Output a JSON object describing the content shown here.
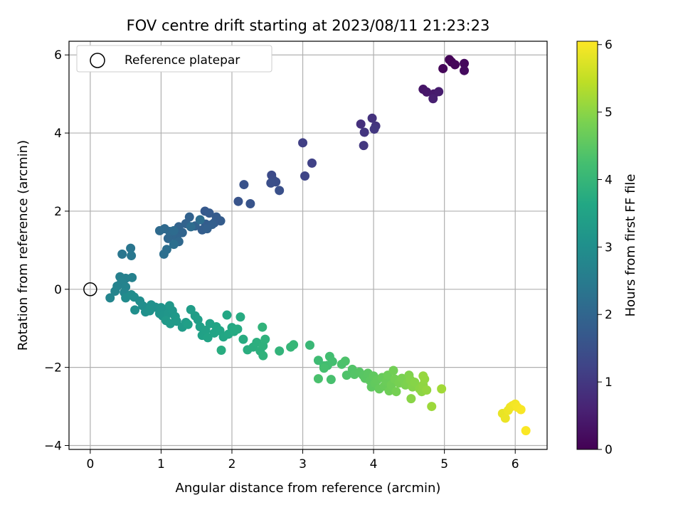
{
  "chart_data": {
    "type": "scatter",
    "title": "FOV centre drift starting at 2023/08/11 21:23:23",
    "xlabel": "Angular distance from reference (arcmin)",
    "ylabel": "Rotation from reference (arcmin)",
    "xlim": [
      -0.3,
      6.45
    ],
    "ylim": [
      -4.1,
      6.35
    ],
    "xticks": [
      0,
      1,
      2,
      3,
      4,
      5,
      6
    ],
    "yticks": [
      -4,
      -2,
      0,
      2,
      4,
      6
    ],
    "grid": true,
    "legend_position": "top-left",
    "legend_entry": "Reference platepar",
    "reference_point": {
      "x": 0,
      "y": 0
    },
    "colorbar": {
      "label": "Hours from first FF file",
      "colormap": "viridis",
      "range": [
        0,
        6.05
      ],
      "ticks": [
        0,
        1,
        2,
        3,
        4,
        5,
        6
      ]
    },
    "points": [
      [
        5.07,
        5.88,
        0.05
      ],
      [
        5.1,
        5.82,
        0.08
      ],
      [
        4.98,
        5.65,
        0.1
      ],
      [
        5.15,
        5.75,
        0.12
      ],
      [
        5.28,
        5.78,
        0.15
      ],
      [
        5.28,
        5.6,
        0.18
      ],
      [
        4.7,
        5.12,
        0.35
      ],
      [
        4.75,
        5.05,
        0.4
      ],
      [
        4.85,
        5.0,
        0.45
      ],
      [
        4.92,
        5.06,
        0.5
      ],
      [
        4.84,
        4.88,
        0.55
      ],
      [
        3.82,
        4.23,
        0.85
      ],
      [
        3.98,
        4.38,
        0.88
      ],
      [
        4.03,
        4.18,
        0.92
      ],
      [
        3.87,
        4.02,
        0.95
      ],
      [
        4.01,
        4.1,
        0.98
      ],
      [
        3.86,
        3.68,
        1.0
      ],
      [
        3.0,
        3.75,
        1.15
      ],
      [
        3.13,
        3.23,
        1.2
      ],
      [
        3.03,
        2.9,
        1.25
      ],
      [
        2.56,
        2.92,
        1.4
      ],
      [
        2.58,
        2.8,
        1.43
      ],
      [
        2.62,
        2.75,
        1.46
      ],
      [
        2.55,
        2.72,
        1.48
      ],
      [
        2.67,
        2.53,
        1.5
      ],
      [
        2.17,
        2.68,
        1.55
      ],
      [
        2.09,
        2.25,
        1.58
      ],
      [
        2.26,
        2.19,
        1.6
      ],
      [
        1.62,
        2.0,
        1.7
      ],
      [
        1.68,
        1.95,
        1.72
      ],
      [
        1.78,
        1.85,
        1.74
      ],
      [
        1.84,
        1.75,
        1.76
      ],
      [
        1.75,
        1.7,
        1.78
      ],
      [
        1.63,
        1.67,
        1.8
      ],
      [
        1.58,
        1.52,
        1.82
      ],
      [
        1.72,
        1.66,
        1.84
      ],
      [
        1.65,
        1.55,
        1.86
      ],
      [
        1.48,
        1.62,
        1.88
      ],
      [
        1.4,
        1.85,
        1.9
      ],
      [
        1.35,
        1.68,
        1.92
      ],
      [
        1.25,
        1.6,
        1.94
      ],
      [
        1.3,
        1.45,
        1.96
      ],
      [
        1.22,
        1.33,
        1.98
      ],
      [
        1.15,
        1.38,
        2.0
      ],
      [
        1.1,
        1.3,
        2.02
      ],
      [
        1.25,
        1.22,
        2.04
      ],
      [
        1.12,
        1.48,
        2.06
      ],
      [
        1.05,
        1.55,
        2.08
      ],
      [
        0.98,
        1.5,
        2.1
      ],
      [
        1.18,
        1.5,
        2.12
      ],
      [
        1.42,
        1.6,
        2.14
      ],
      [
        1.55,
        1.78,
        2.16
      ],
      [
        1.08,
        1.02,
        2.18
      ],
      [
        1.04,
        0.9,
        2.2
      ],
      [
        1.18,
        1.15,
        2.22
      ],
      [
        0.57,
        1.05,
        2.35
      ],
      [
        0.45,
        0.9,
        2.38
      ],
      [
        0.58,
        0.86,
        2.4
      ],
      [
        0.42,
        0.32,
        2.6
      ],
      [
        0.5,
        0.28,
        2.62
      ],
      [
        0.59,
        0.3,
        2.64
      ],
      [
        0.44,
        0.18,
        2.66
      ],
      [
        0.38,
        0.08,
        2.68
      ],
      [
        0.5,
        0.06,
        2.7
      ],
      [
        0.35,
        -0.05,
        2.72
      ],
      [
        0.48,
        -0.08,
        2.74
      ],
      [
        0.28,
        -0.22,
        2.76
      ],
      [
        0.5,
        -0.22,
        2.9
      ],
      [
        0.58,
        -0.14,
        2.92
      ],
      [
        0.62,
        -0.2,
        2.94
      ],
      [
        0.7,
        -0.3,
        2.96
      ],
      [
        0.74,
        -0.42,
        2.98
      ],
      [
        0.63,
        -0.53,
        3.0
      ],
      [
        0.78,
        -0.58,
        3.02
      ],
      [
        0.86,
        -0.4,
        3.04
      ],
      [
        0.92,
        -0.46,
        3.06
      ],
      [
        0.84,
        -0.55,
        3.08
      ],
      [
        1.0,
        -0.47,
        3.1
      ],
      [
        1.05,
        -0.56,
        3.12
      ],
      [
        0.98,
        -0.62,
        3.14
      ],
      [
        1.02,
        -0.68,
        3.16
      ],
      [
        1.1,
        -0.62,
        3.18
      ],
      [
        1.16,
        -0.55,
        3.2
      ],
      [
        1.12,
        -0.42,
        3.22
      ],
      [
        1.2,
        -0.7,
        3.24
      ],
      [
        1.07,
        -0.8,
        3.26
      ],
      [
        1.13,
        -0.88,
        3.28
      ],
      [
        1.22,
        -0.82,
        3.3
      ],
      [
        1.3,
        -0.97,
        3.32
      ],
      [
        1.35,
        -0.85,
        3.34
      ],
      [
        1.42,
        -0.52,
        3.36
      ],
      [
        1.48,
        -0.68,
        3.38
      ],
      [
        1.52,
        -0.78,
        3.4
      ],
      [
        1.38,
        -0.9,
        3.42
      ],
      [
        1.55,
        -0.96,
        3.44
      ],
      [
        1.58,
        -1.18,
        3.46
      ],
      [
        1.63,
        -1.05,
        3.48
      ],
      [
        1.69,
        -0.88,
        3.5
      ],
      [
        1.66,
        -1.24,
        3.52
      ],
      [
        1.75,
        -1.12,
        3.54
      ],
      [
        1.78,
        -0.96,
        3.56
      ],
      [
        1.83,
        -1.06,
        3.58
      ],
      [
        1.88,
        -1.22,
        3.6
      ],
      [
        1.93,
        -0.66,
        3.62
      ],
      [
        1.95,
        -1.15,
        3.64
      ],
      [
        2.0,
        -0.98,
        3.66
      ],
      [
        2.03,
        -1.08,
        3.68
      ],
      [
        2.08,
        -1.02,
        3.7
      ],
      [
        2.12,
        -0.71,
        3.72
      ],
      [
        2.16,
        -1.28,
        3.74
      ],
      [
        1.85,
        -1.56,
        3.76
      ],
      [
        2.22,
        -1.55,
        3.78
      ],
      [
        2.3,
        -1.48,
        3.8
      ],
      [
        2.35,
        -1.36,
        3.82
      ],
      [
        2.4,
        -1.58,
        3.84
      ],
      [
        2.44,
        -1.45,
        3.86
      ],
      [
        2.47,
        -1.28,
        3.88
      ],
      [
        2.44,
        -1.7,
        3.9
      ],
      [
        2.43,
        -0.97,
        3.92
      ],
      [
        2.67,
        -1.58,
        3.94
      ],
      [
        2.83,
        -1.48,
        4.0
      ],
      [
        2.87,
        -1.42,
        4.02
      ],
      [
        3.1,
        -1.43,
        4.05
      ],
      [
        3.22,
        -1.82,
        4.15
      ],
      [
        3.3,
        -1.96,
        4.18
      ],
      [
        3.38,
        -1.72,
        4.2
      ],
      [
        3.35,
        -1.95,
        4.22
      ],
      [
        3.42,
        -1.85,
        4.24
      ],
      [
        3.3,
        -2.02,
        4.26
      ],
      [
        3.4,
        -2.31,
        4.28
      ],
      [
        3.22,
        -2.29,
        4.3
      ],
      [
        3.55,
        -1.92,
        4.32
      ],
      [
        3.6,
        -1.84,
        4.34
      ],
      [
        3.62,
        -2.2,
        4.36
      ],
      [
        3.7,
        -2.05,
        4.4
      ],
      [
        3.73,
        -2.18,
        4.42
      ],
      [
        3.8,
        -2.12,
        4.44
      ],
      [
        3.85,
        -2.2,
        4.46
      ],
      [
        3.88,
        -2.28,
        4.48
      ],
      [
        3.92,
        -2.15,
        4.5
      ],
      [
        3.95,
        -2.34,
        4.52
      ],
      [
        3.97,
        -2.5,
        4.54
      ],
      [
        4.0,
        -2.22,
        4.56
      ],
      [
        4.02,
        -2.4,
        4.58
      ],
      [
        4.05,
        -2.32,
        4.6
      ],
      [
        4.08,
        -2.55,
        4.62
      ],
      [
        4.12,
        -2.26,
        4.64
      ],
      [
        4.15,
        -2.48,
        4.66
      ],
      [
        4.18,
        -2.36,
        4.68
      ],
      [
        4.2,
        -2.2,
        4.7
      ],
      [
        4.22,
        -2.6,
        4.72
      ],
      [
        4.25,
        -2.45,
        4.74
      ],
      [
        4.28,
        -2.08,
        4.76
      ],
      [
        4.3,
        -2.3,
        4.78
      ],
      [
        4.32,
        -2.62,
        4.8
      ],
      [
        4.36,
        -2.4,
        4.82
      ],
      [
        4.4,
        -2.28,
        4.84
      ],
      [
        4.45,
        -2.45,
        4.86
      ],
      [
        4.48,
        -2.4,
        4.88
      ],
      [
        4.5,
        -2.2,
        4.9
      ],
      [
        4.52,
        -2.32,
        4.92
      ],
      [
        4.55,
        -2.5,
        4.94
      ],
      [
        4.58,
        -2.38,
        4.96
      ],
      [
        4.53,
        -2.8,
        4.98
      ],
      [
        4.65,
        -2.55,
        5.0
      ],
      [
        4.68,
        -2.62,
        5.02
      ],
      [
        4.7,
        -2.45,
        5.04
      ],
      [
        4.72,
        -2.3,
        5.06
      ],
      [
        4.75,
        -2.58,
        5.08
      ],
      [
        4.7,
        -2.22,
        5.1
      ],
      [
        4.82,
        -3.0,
        5.15
      ],
      [
        4.96,
        -2.55,
        5.2
      ],
      [
        5.82,
        -3.18,
        5.85
      ],
      [
        5.86,
        -3.3,
        5.88
      ],
      [
        5.9,
        -3.1,
        5.9
      ],
      [
        5.93,
        -3.02,
        5.92
      ],
      [
        5.96,
        -2.98,
        5.94
      ],
      [
        6.0,
        -2.94,
        5.96
      ],
      [
        6.03,
        -3.02,
        5.98
      ],
      [
        6.08,
        -3.08,
        6.0
      ],
      [
        6.15,
        -3.62,
        6.02
      ]
    ]
  }
}
